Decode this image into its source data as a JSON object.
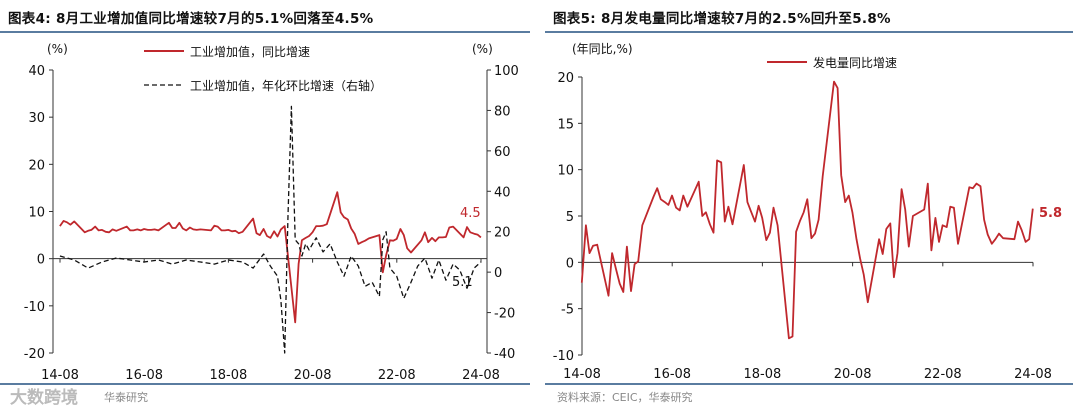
{
  "watermark": "大数跨境",
  "chart_data": [
    {
      "type": "line",
      "title": "图表4:  8月工业增加值同比增速较7月的5.1%回落至4.5%",
      "source": "华泰研究",
      "left_unit": "(%)",
      "right_unit": "(%)",
      "x_ticks": [
        "14-08",
        "16-08",
        "18-08",
        "20-08",
        "22-08",
        "24-08"
      ],
      "ylim_left": [
        -20,
        40
      ],
      "yticks_left": [
        -20,
        -10,
        0,
        10,
        20,
        30,
        40
      ],
      "ylim_right": [
        -40,
        100
      ],
      "yticks_right": [
        -40,
        -20,
        0,
        20,
        40,
        60,
        80,
        100
      ],
      "annotations": [
        "4.5",
        "5.1"
      ],
      "series": [
        {
          "name": "工业增加值，同比增速",
          "axis": "left",
          "color": "#c0282d",
          "dash": false,
          "x": [
            2014.58,
            2014.67,
            2014.75,
            2014.83,
            2014.92,
            2015.17,
            2015.25,
            2015.33,
            2015.42,
            2015.5,
            2015.58,
            2015.67,
            2015.75,
            2015.83,
            2015.92,
            2016.17,
            2016.25,
            2016.33,
            2016.42,
            2016.5,
            2016.58,
            2016.67,
            2016.75,
            2016.83,
            2016.92,
            2017.17,
            2017.25,
            2017.33,
            2017.42,
            2017.5,
            2017.58,
            2017.67,
            2017.75,
            2017.83,
            2017.92,
            2018.17,
            2018.25,
            2018.33,
            2018.42,
            2018.5,
            2018.58,
            2018.67,
            2018.75,
            2018.83,
            2018.92,
            2019.17,
            2019.25,
            2019.33,
            2019.42,
            2019.5,
            2019.58,
            2019.67,
            2019.75,
            2019.83,
            2019.92,
            2020.17,
            2020.25,
            2020.33,
            2020.42,
            2020.5,
            2020.58,
            2020.67,
            2020.75,
            2020.83,
            2020.92,
            2021.17,
            2021.25,
            2021.33,
            2021.42,
            2021.5,
            2021.58,
            2021.67,
            2021.75,
            2021.83,
            2021.92,
            2022.17,
            2022.25,
            2022.33,
            2022.42,
            2022.5,
            2022.58,
            2022.67,
            2022.75,
            2022.83,
            2022.92,
            2023.17,
            2023.25,
            2023.33,
            2023.42,
            2023.5,
            2023.58,
            2023.67,
            2023.75,
            2023.83,
            2023.92,
            2024.17,
            2024.25,
            2024.33,
            2024.42,
            2024.5,
            2024.58
          ],
          "y": [
            6.9,
            8.0,
            7.7,
            7.2,
            7.9,
            5.6,
            5.9,
            6.1,
            6.8,
            6.0,
            6.1,
            5.7,
            5.6,
            6.2,
            5.9,
            6.8,
            6.0,
            6.0,
            6.2,
            6.0,
            6.3,
            6.1,
            6.1,
            6.2,
            6.0,
            7.6,
            6.5,
            6.5,
            7.6,
            6.4,
            6.0,
            6.6,
            6.2,
            6.1,
            6.2,
            6.0,
            7.0,
            6.8,
            6.0,
            6.0,
            6.1,
            5.8,
            5.9,
            5.4,
            5.7,
            8.5,
            5.4,
            5.0,
            6.3,
            4.8,
            4.4,
            5.8,
            4.7,
            6.2,
            6.9,
            -13.5,
            -1.1,
            3.9,
            4.4,
            4.8,
            5.6,
            6.9,
            6.9,
            7.0,
            7.3,
            14.1,
            9.8,
            8.8,
            8.3,
            6.4,
            5.3,
            3.1,
            3.5,
            3.8,
            4.3,
            5.0,
            -2.9,
            0.7,
            3.9,
            3.8,
            4.2,
            6.3,
            5.0,
            2.2,
            1.3,
            3.9,
            5.6,
            3.5,
            4.4,
            3.7,
            4.5,
            4.5,
            4.6,
            6.6,
            6.8,
            4.5,
            6.7,
            5.6,
            5.3,
            5.1,
            4.5
          ]
        },
        {
          "name": "工业增加值，年化环比增速（右轴）",
          "axis": "right",
          "color": "#111111",
          "dash": true,
          "x": [
            2014.58,
            2014.92,
            2015.25,
            2015.58,
            2015.92,
            2016.25,
            2016.58,
            2016.92,
            2017.25,
            2017.58,
            2017.92,
            2018.25,
            2018.58,
            2018.92,
            2019.17,
            2019.42,
            2019.58,
            2019.75,
            2019.83,
            2019.92,
            2020.0,
            2020.08,
            2020.17,
            2020.25,
            2020.33,
            2020.42,
            2020.5,
            2020.67,
            2020.83,
            2021.0,
            2021.17,
            2021.33,
            2021.5,
            2021.67,
            2021.83,
            2022.0,
            2022.17,
            2022.25,
            2022.33,
            2022.42,
            2022.58,
            2022.75,
            2022.92,
            2023.08,
            2023.25,
            2023.42,
            2023.58,
            2023.75,
            2023.92,
            2024.08,
            2024.25,
            2024.42,
            2024.58
          ],
          "y": [
            8,
            6,
            2,
            5,
            7,
            6,
            5,
            6,
            4,
            6,
            5,
            4,
            6,
            5,
            2,
            9,
            3,
            -2,
            -14,
            -40,
            28,
            82,
            16,
            14,
            8,
            14,
            11,
            17,
            10,
            14,
            5,
            -2,
            8,
            3,
            -7,
            -5,
            -12,
            16,
            20,
            2,
            -2,
            -13,
            -5,
            3,
            7,
            -3,
            6,
            -4,
            4,
            1,
            -8,
            2,
            5
          ]
        }
      ]
    },
    {
      "type": "line",
      "title": "图表5:  8月发电量同比增速较7月的2.5%回升至5.8%",
      "source": "资料来源：CEIC，华泰研究",
      "left_unit": "(年同比,%)",
      "x_ticks": [
        "14-08",
        "16-08",
        "18-08",
        "20-08",
        "22-08",
        "24-08"
      ],
      "ylim_left": [
        -10,
        20
      ],
      "yticks_left": [
        -10,
        -5,
        0,
        5,
        10,
        15,
        20
      ],
      "annotations": [
        "5.8"
      ],
      "series": [
        {
          "name": "发电量同比增速",
          "axis": "left",
          "color": "#c0282d",
          "dash": false,
          "x": [
            2014.58,
            2014.67,
            2014.75,
            2014.83,
            2014.92,
            2015.17,
            2015.25,
            2015.33,
            2015.42,
            2015.5,
            2015.58,
            2015.67,
            2015.75,
            2015.83,
            2015.92,
            2016.17,
            2016.25,
            2016.33,
            2016.42,
            2016.5,
            2016.58,
            2016.67,
            2016.75,
            2016.83,
            2016.92,
            2017.17,
            2017.25,
            2017.33,
            2017.42,
            2017.5,
            2017.58,
            2017.67,
            2017.75,
            2017.83,
            2017.92,
            2018.17,
            2018.25,
            2018.33,
            2018.42,
            2018.5,
            2018.58,
            2018.67,
            2018.75,
            2018.83,
            2018.92,
            2019.17,
            2019.25,
            2019.33,
            2019.42,
            2019.5,
            2019.58,
            2019.67,
            2019.75,
            2019.83,
            2019.92,
            2020.17,
            2020.25,
            2020.33,
            2020.42,
            2020.5,
            2020.58,
            2020.67,
            2020.75,
            2020.83,
            2020.92,
            2021.17,
            2021.25,
            2021.33,
            2021.42,
            2021.5,
            2021.58,
            2021.67,
            2021.75,
            2021.83,
            2021.92,
            2022.17,
            2022.25,
            2022.33,
            2022.42,
            2022.5,
            2022.58,
            2022.67,
            2022.75,
            2022.83,
            2022.92,
            2023.17,
            2023.25,
            2023.33,
            2023.42,
            2023.5,
            2023.58,
            2023.67,
            2023.75,
            2023.83,
            2023.92,
            2024.17,
            2024.25,
            2024.33,
            2024.42,
            2024.5,
            2024.58
          ],
          "y": [
            -2.2,
            4.0,
            1.0,
            1.8,
            1.9,
            -3.6,
            1.0,
            -0.6,
            -2.3,
            -3.2,
            1.7,
            -3.1,
            -0.2,
            0.1,
            4.0,
            7.1,
            8.0,
            6.8,
            6.5,
            6.2,
            7.2,
            5.9,
            5.6,
            7.2,
            6.0,
            8.7,
            5.0,
            5.4,
            4.1,
            3.2,
            11.0,
            10.8,
            4.4,
            6.0,
            4.1,
            10.5,
            6.5,
            5.5,
            4.4,
            6.1,
            4.8,
            2.4,
            3.2,
            5.9,
            4.0,
            -8.2,
            -8.0,
            3.3,
            4.5,
            5.4,
            6.8,
            2.6,
            3.1,
            4.6,
            9.3,
            19.5,
            18.8,
            9.4,
            6.5,
            7.2,
            5.4,
            2.5,
            0.4,
            -1.3,
            -4.3,
            2.5,
            0.9,
            3.6,
            4.2,
            -1.6,
            1.0,
            7.9,
            5.7,
            1.7,
            5.0,
            5.7,
            8.5,
            1.3,
            4.8,
            2.2,
            4.0,
            3.8,
            6.0,
            5.9,
            2.0,
            8.1,
            8.0,
            8.5,
            8.2,
            4.6,
            3.0,
            2.0,
            2.5,
            3.1,
            2.6,
            2.5,
            4.4,
            3.5,
            2.2,
            2.5,
            5.8
          ]
        }
      ]
    }
  ]
}
